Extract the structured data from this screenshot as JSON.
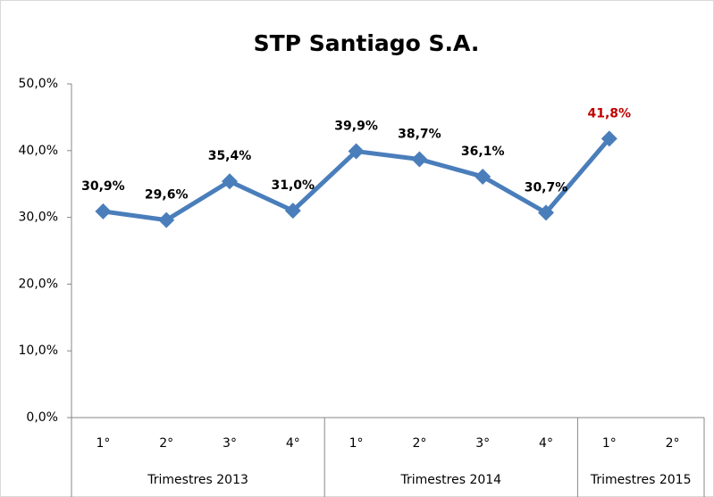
{
  "chart_data": {
    "type": "line",
    "title": "STP Santiago S.A.",
    "categories": [
      "1°",
      "2°",
      "3°",
      "4°",
      "1°",
      "2°",
      "3°",
      "4°",
      "1°",
      "2°"
    ],
    "groups": [
      {
        "name": "Trimestres 2013",
        "count": 4
      },
      {
        "name": "Trimestres 2014",
        "count": 4
      },
      {
        "name": "Trimestres 2015",
        "count": 2
      }
    ],
    "series": [
      {
        "color": "#4a7ebb",
        "values": [
          30.9,
          29.6,
          35.4,
          31.0,
          39.9,
          38.7,
          36.1,
          30.7,
          41.8,
          null
        ],
        "value_labels": [
          "30,9%",
          "29,6%",
          "35,4%",
          "31,0%",
          "39,9%",
          "38,7%",
          "36,1%",
          "30,7%",
          "41,8%",
          null
        ],
        "value_label_colors": [
          "#000000",
          "#000000",
          "#000000",
          "#000000",
          "#000000",
          "#000000",
          "#000000",
          "#000000",
          "#c00000",
          null
        ]
      }
    ],
    "ylim": [
      0,
      50
    ],
    "yticks": [
      {
        "value": 0,
        "label": "0,0%"
      },
      {
        "value": 10,
        "label": "10,0%"
      },
      {
        "value": 20,
        "label": "20,0%"
      },
      {
        "value": 30,
        "label": "30,0%"
      },
      {
        "value": 40,
        "label": "40,0%"
      },
      {
        "value": 50,
        "label": "50,0%"
      }
    ],
    "grid": false
  }
}
